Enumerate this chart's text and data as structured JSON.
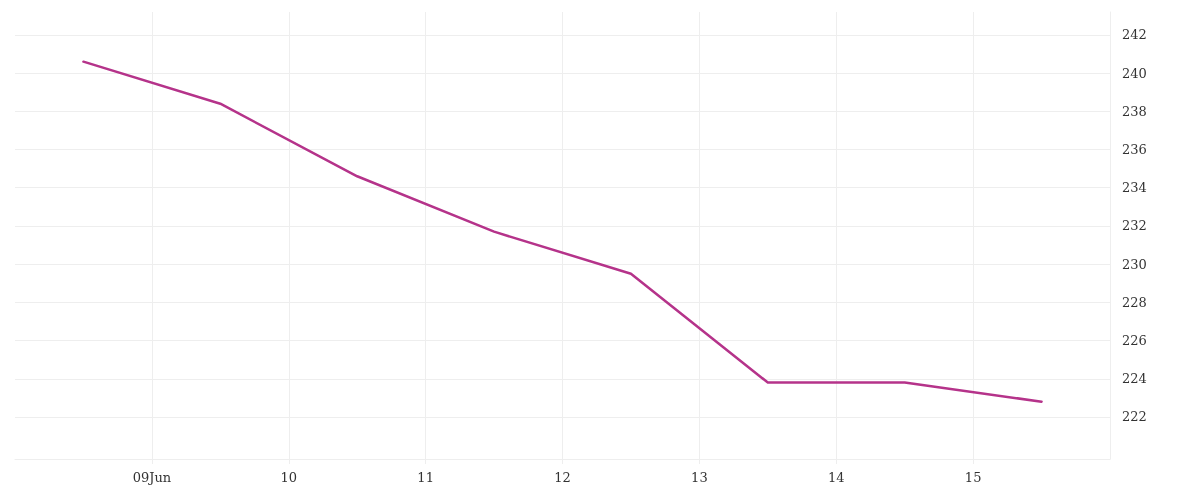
{
  "chart_data": {
    "type": "line",
    "x": [
      "--06-08T12:00",
      "--06-09T12:00",
      "--06-10T12:00",
      "--06-11T12:00",
      "--06-12T12:00",
      "--06-13T12:00",
      "--06-14T12:00",
      "--06-15T12:00"
    ],
    "series": [
      {
        "color": "#b5338a",
        "values": [
          240.6,
          238.4,
          234.6,
          231.7,
          229.5,
          223.8,
          223.8,
          222.8
        ]
      }
    ],
    "xlim": [
      "--06-08",
      "--06-16"
    ],
    "xticks": [
      {
        "value": "--06-09",
        "label": "09Jun"
      },
      {
        "value": "--06-10",
        "label": "10"
      },
      {
        "value": "--06-11",
        "label": "11"
      },
      {
        "value": "--06-12",
        "label": "12"
      },
      {
        "value": "--06-13",
        "label": "13"
      },
      {
        "value": "--06-14",
        "label": "14"
      },
      {
        "value": "--06-15",
        "label": "15"
      }
    ],
    "ylim": [
      219.8,
      243.2
    ],
    "yticks": [
      222,
      224,
      226,
      228,
      230,
      232,
      234,
      236,
      238,
      240,
      242
    ],
    "grid": true,
    "marker": "none",
    "line_style": "solid"
  }
}
